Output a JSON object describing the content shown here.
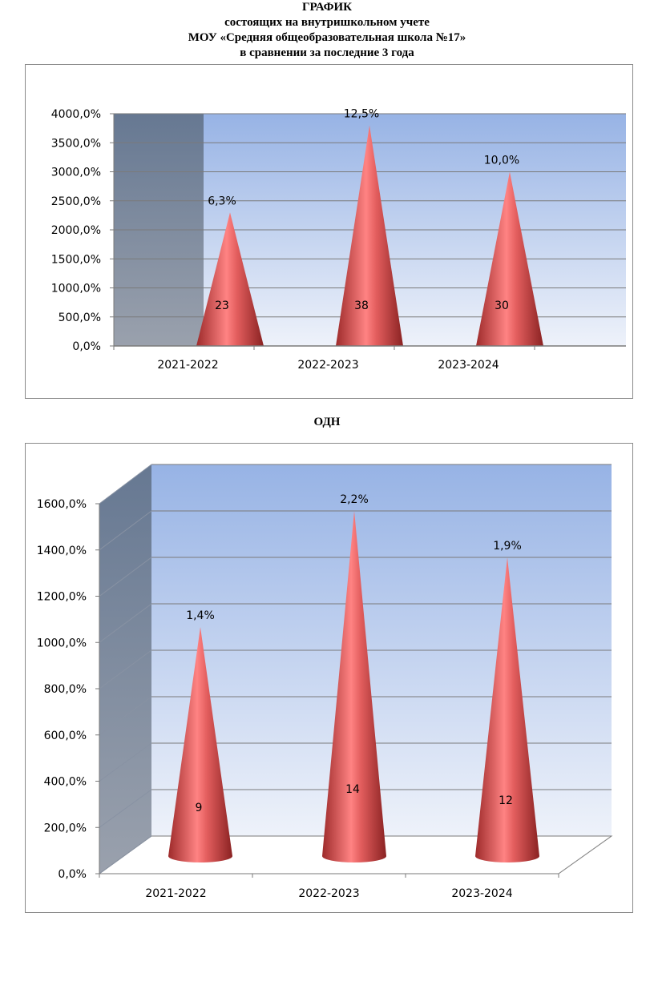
{
  "header": {
    "line1": "ГРАФИК",
    "line2": "состоящих на внутришкольном учете",
    "line3": "МОУ «Средняя общеобразовательная школа №17»",
    "line4": "в сравнении за последние 3 года"
  },
  "odn_title": "ОДН",
  "colors": {
    "cone": "#e05a5a",
    "wall": "#6b7a90",
    "back": "#9fb6e4"
  },
  "chart_data": [
    {
      "type": "bar",
      "shape": "cone",
      "categories": [
        "2021-2022",
        "2022-2023",
        "2023-2024"
      ],
      "y_ticks": [
        "0,0%",
        "500,0%",
        "1000,0%",
        "1500,0%",
        "2000,0%",
        "2500,0%",
        "3000,0%",
        "3500,0%",
        "4000,0%"
      ],
      "ylim": [
        0,
        4000
      ],
      "values": [
        2300,
        3800,
        3000
      ],
      "count_labels": [
        "23",
        "38",
        "30"
      ],
      "percent_labels": [
        "6,3%",
        "12,5%",
        "10,0%"
      ],
      "grid": true
    },
    {
      "type": "bar",
      "shape": "cone",
      "categories": [
        "2021-2022",
        "2022-2023",
        "2023-2024"
      ],
      "y_ticks": [
        "0,0%",
        "200,0%",
        "400,0%",
        "600,0%",
        "800,0%",
        "1000,0%",
        "1200,0%",
        "1400,0%",
        "1600,0%"
      ],
      "ylim": [
        0,
        1600
      ],
      "values": [
        900,
        1400,
        1200
      ],
      "count_labels": [
        "9",
        "14",
        "12"
      ],
      "percent_labels": [
        "1,4%",
        "2,2%",
        "1,9%"
      ],
      "grid": true
    }
  ]
}
